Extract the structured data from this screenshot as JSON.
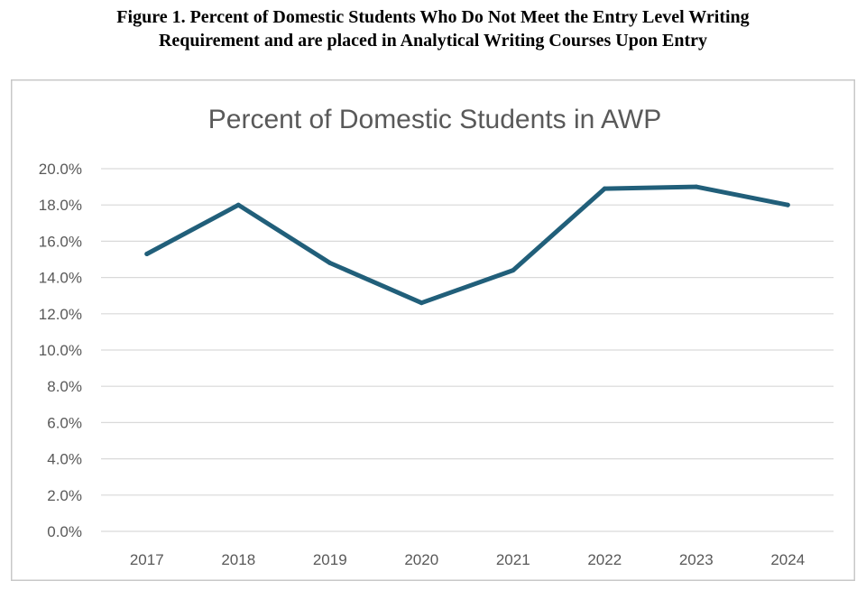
{
  "figure": {
    "caption_line1": "Figure 1. Percent of Domestic Students Who Do Not Meet the Entry Level Writing",
    "caption_line2": "Requirement and are placed in Analytical Writing Courses Upon Entry"
  },
  "chart_data": {
    "type": "line",
    "title": "Percent of Domestic Students in AWP",
    "xlabel": "",
    "ylabel": "",
    "categories": [
      "2017",
      "2018",
      "2019",
      "2020",
      "2021",
      "2022",
      "2023",
      "2024"
    ],
    "series": [
      {
        "values": [
          15.3,
          18.0,
          14.8,
          12.6,
          14.4,
          18.9,
          19.0,
          18.0
        ]
      }
    ],
    "ylim": [
      0,
      20
    ],
    "yticks": [
      "0.0%",
      "2.0%",
      "4.0%",
      "6.0%",
      "8.0%",
      "10.0%",
      "12.0%",
      "14.0%",
      "16.0%",
      "18.0%",
      "20.0%"
    ],
    "grid": true,
    "legend": "none",
    "colors": {
      "line": "#215f7a",
      "grid": "#d9d9d9",
      "text": "#595959"
    }
  }
}
